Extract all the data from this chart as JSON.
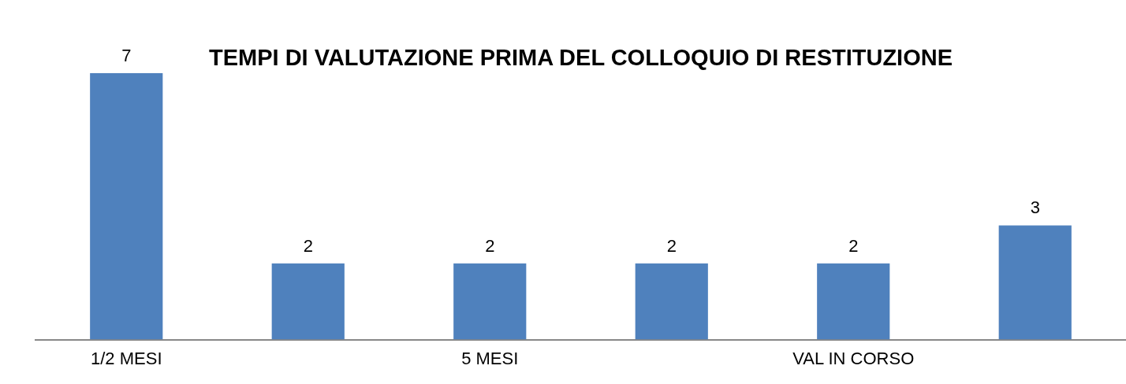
{
  "chart_data": {
    "type": "bar",
    "title": "TEMPI DI VALUTAZIONE PRIMA DEL COLLOQUIO DI RESTITUZIONE",
    "categories": [
      "1/2 MESI",
      null,
      "5 MESI",
      null,
      "VAL IN CORSO",
      null
    ],
    "values": [
      7,
      2,
      2,
      2,
      2,
      3
    ],
    "color": "#4f81bd",
    "data_labels": true,
    "grid": false,
    "legend": false
  }
}
